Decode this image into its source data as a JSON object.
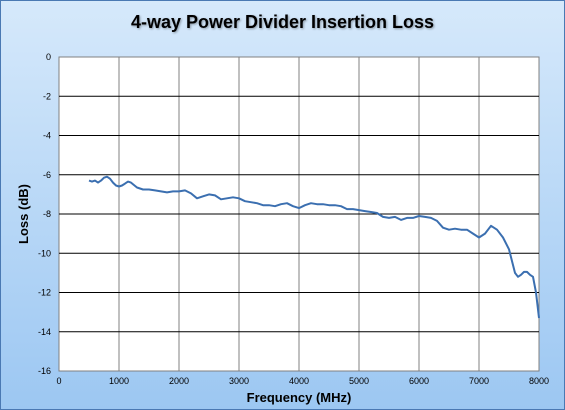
{
  "chart_data": {
    "type": "line",
    "title": "4-way Power Divider Insertion Loss",
    "xlabel": "Frequency (MHz)",
    "ylabel": "Loss (dB)",
    "xlim": [
      0,
      8000
    ],
    "ylim": [
      -16,
      0
    ],
    "x_ticks": [
      0,
      1000,
      2000,
      3000,
      4000,
      5000,
      6000,
      7000,
      8000
    ],
    "y_ticks": [
      0,
      -2,
      -4,
      -6,
      -8,
      -10,
      -12,
      -14,
      -16
    ],
    "grid": true,
    "series": [
      {
        "color": "#3b6fb0",
        "points": [
          [
            500,
            -6.3
          ],
          [
            550,
            -6.35
          ],
          [
            600,
            -6.3
          ],
          [
            650,
            -6.4
          ],
          [
            700,
            -6.3
          ],
          [
            750,
            -6.15
          ],
          [
            800,
            -6.1
          ],
          [
            850,
            -6.2
          ],
          [
            900,
            -6.4
          ],
          [
            950,
            -6.55
          ],
          [
            1000,
            -6.6
          ],
          [
            1050,
            -6.55
          ],
          [
            1100,
            -6.45
          ],
          [
            1150,
            -6.35
          ],
          [
            1200,
            -6.4
          ],
          [
            1300,
            -6.65
          ],
          [
            1400,
            -6.75
          ],
          [
            1500,
            -6.75
          ],
          [
            1600,
            -6.8
          ],
          [
            1700,
            -6.85
          ],
          [
            1800,
            -6.9
          ],
          [
            1900,
            -6.85
          ],
          [
            2000,
            -6.85
          ],
          [
            2100,
            -6.8
          ],
          [
            2200,
            -6.95
          ],
          [
            2300,
            -7.2
          ],
          [
            2400,
            -7.1
          ],
          [
            2500,
            -7.0
          ],
          [
            2600,
            -7.05
          ],
          [
            2700,
            -7.25
          ],
          [
            2800,
            -7.2
          ],
          [
            2900,
            -7.15
          ],
          [
            3000,
            -7.2
          ],
          [
            3100,
            -7.35
          ],
          [
            3200,
            -7.4
          ],
          [
            3300,
            -7.45
          ],
          [
            3400,
            -7.55
          ],
          [
            3500,
            -7.55
          ],
          [
            3600,
            -7.6
          ],
          [
            3700,
            -7.5
          ],
          [
            3800,
            -7.45
          ],
          [
            3900,
            -7.6
          ],
          [
            4000,
            -7.7
          ],
          [
            4100,
            -7.55
          ],
          [
            4200,
            -7.45
          ],
          [
            4300,
            -7.5
          ],
          [
            4400,
            -7.5
          ],
          [
            4500,
            -7.55
          ],
          [
            4600,
            -7.55
          ],
          [
            4700,
            -7.6
          ],
          [
            4800,
            -7.75
          ],
          [
            4900,
            -7.75
          ],
          [
            5000,
            -7.8
          ],
          [
            5100,
            -7.85
          ],
          [
            5200,
            -7.9
          ],
          [
            5300,
            -7.95
          ],
          [
            5400,
            -8.15
          ],
          [
            5500,
            -8.2
          ],
          [
            5600,
            -8.15
          ],
          [
            5700,
            -8.3
          ],
          [
            5800,
            -8.2
          ],
          [
            5900,
            -8.2
          ],
          [
            6000,
            -8.1
          ],
          [
            6100,
            -8.15
          ],
          [
            6200,
            -8.2
          ],
          [
            6300,
            -8.35
          ],
          [
            6400,
            -8.7
          ],
          [
            6500,
            -8.8
          ],
          [
            6600,
            -8.75
          ],
          [
            6700,
            -8.8
          ],
          [
            6800,
            -8.8
          ],
          [
            6900,
            -9.0
          ],
          [
            7000,
            -9.2
          ],
          [
            7100,
            -9.0
          ],
          [
            7200,
            -8.6
          ],
          [
            7300,
            -8.8
          ],
          [
            7400,
            -9.2
          ],
          [
            7500,
            -9.8
          ],
          [
            7550,
            -10.4
          ],
          [
            7600,
            -11.0
          ],
          [
            7650,
            -11.2
          ],
          [
            7700,
            -11.1
          ],
          [
            7750,
            -10.95
          ],
          [
            7800,
            -10.95
          ],
          [
            7850,
            -11.1
          ],
          [
            7900,
            -11.2
          ],
          [
            7950,
            -12.0
          ],
          [
            8000,
            -13.3
          ]
        ]
      }
    ]
  }
}
